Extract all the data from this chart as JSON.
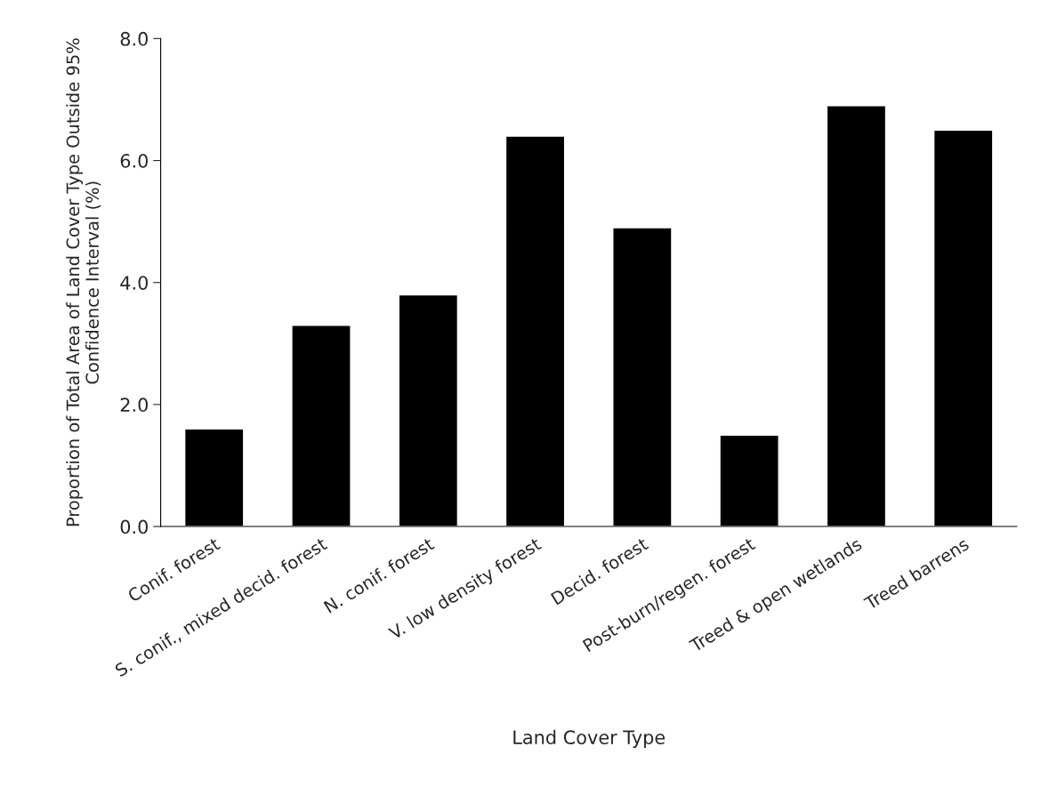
{
  "chart_data": {
    "type": "bar",
    "xlabel": "Land Cover Type",
    "ylabel": "Proportion of Total Area of Land Cover Type Outside 95%\nConfidence Interval (%)",
    "categories": [
      "Conif. forest",
      "S. conif., mixed decid. forest",
      "N. conif. forest",
      "V. low density forest",
      "Decid. forest",
      "Post-burn/regen. forest",
      "Treed & open wetlands",
      "Treed barrens"
    ],
    "values": [
      1.6,
      3.3,
      3.8,
      6.4,
      4.9,
      1.5,
      6.9,
      6.5
    ],
    "color": "#000000",
    "ylim": [
      0,
      8
    ],
    "yticks": [
      {
        "value": 0,
        "label": "0.0"
      },
      {
        "value": 2,
        "label": "2.0"
      },
      {
        "value": 4,
        "label": "4.0"
      },
      {
        "value": 6,
        "label": "6.0"
      },
      {
        "value": 8,
        "label": "8.0"
      }
    ],
    "grid": false,
    "legend": false
  }
}
